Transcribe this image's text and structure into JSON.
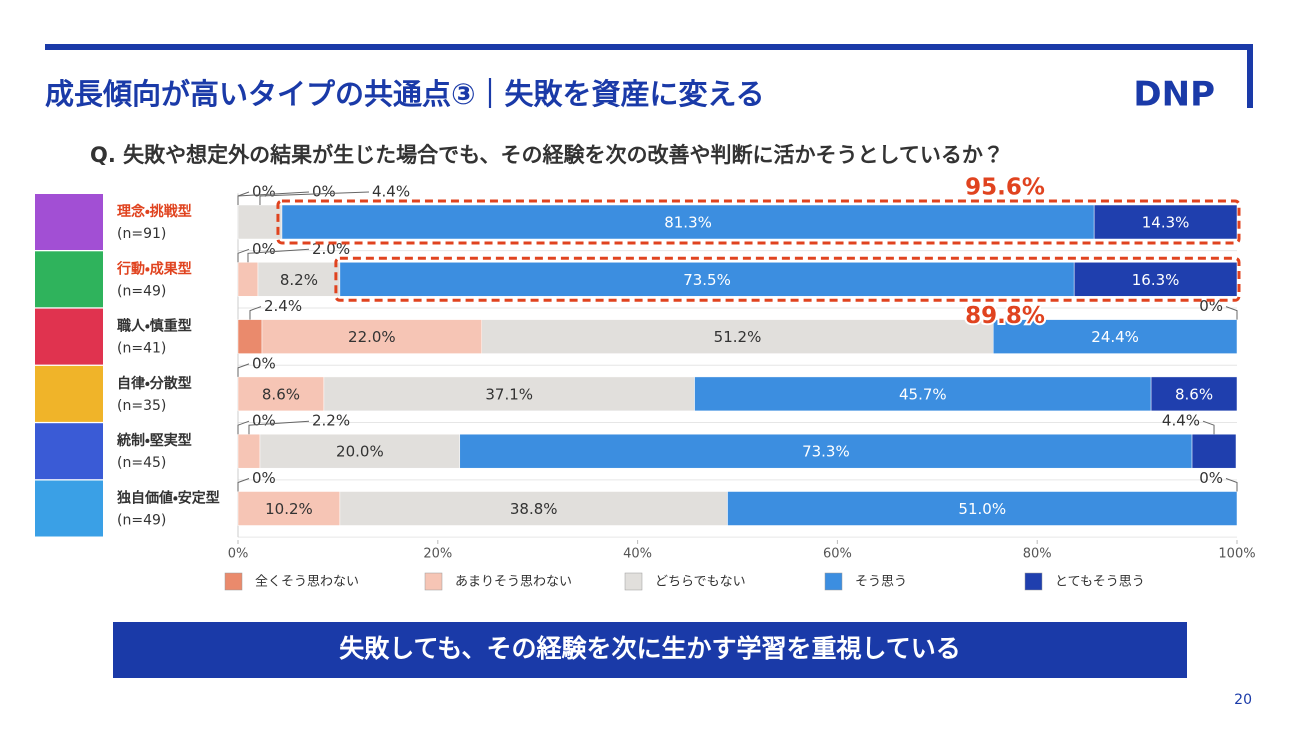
{
  "slide": {
    "title": "成長傾向が高いタイプの共通点③｜失敗を資産に変える",
    "logo": "DNP",
    "banner": "失敗しても、その経験を次に生かす学習を重視している",
    "page": "20"
  },
  "chart_data": {
    "type": "stacked_barh",
    "title": "Q. 失敗や想定外の結果が生じた場合でも、その経験を次の改善や判断に活かそうとしているか？",
    "categories": [
      "理念・挑戦型",
      "行動・成果型",
      "職人・慎重型",
      "自律・分散型",
      "統制・堅実型",
      "独自価値・安定型"
    ],
    "sample_sizes": [
      "(n=91)",
      "(n=49)",
      "(n=41)",
      "(n=35)",
      "(n=45)",
      "(n=49)"
    ],
    "highlight": [
      true,
      true,
      false,
      false,
      false,
      false
    ],
    "icon_colors": [
      "#a24fd4",
      "#2fb35c",
      "#e0334f",
      "#f0b429",
      "#3a5bd6",
      "#3aa0e6"
    ],
    "series": [
      {
        "name": "全くそう思わない",
        "color": "#ea8a6c",
        "values": [
          0,
          0,
          2.4,
          0,
          0,
          0
        ],
        "value_labels": [
          "0%",
          "0%",
          "2.4%",
          "0%",
          "0%",
          "0%"
        ]
      },
      {
        "name": "あまりそう思わない",
        "color": "#f6c5b5",
        "values": [
          0,
          2.0,
          22.0,
          8.6,
          2.2,
          10.2
        ],
        "value_labels": [
          "0%",
          "2.0%",
          "22.0%",
          "8.6%",
          "2.2%",
          "10.2%"
        ]
      },
      {
        "name": "どちらでもない",
        "color": "#e1dfdc",
        "values": [
          4.4,
          8.2,
          51.2,
          37.1,
          20.0,
          38.8
        ],
        "value_labels": [
          "4.4%",
          "8.2%",
          "51.2%",
          "37.1%",
          "20.0%",
          "38.8%"
        ]
      },
      {
        "name": "そう思う",
        "color": "#3c8ee0",
        "values": [
          81.3,
          73.5,
          24.4,
          45.7,
          73.3,
          51.0
        ],
        "value_labels": [
          "81.3%",
          "73.5%",
          "24.4%",
          "45.7%",
          "73.3%",
          "51.0%"
        ]
      },
      {
        "name": "とてもそう思う",
        "color": "#1f3fae",
        "values": [
          14.3,
          16.3,
          0,
          8.6,
          4.4,
          0
        ],
        "value_labels": [
          "14.3%",
          "16.3%",
          "0%",
          "8.6%",
          "4.4%",
          "0%"
        ]
      }
    ],
    "annotations": [
      {
        "value": 95.6,
        "label": "95.6%"
      },
      {
        "value": 89.8,
        "label": "89.8%"
      }
    ],
    "xlim": [
      0,
      100
    ],
    "xticks": [
      {
        "value": 0,
        "label": "0%"
      },
      {
        "value": 20,
        "label": "20%"
      },
      {
        "value": 40,
        "label": "40%"
      },
      {
        "value": 60,
        "label": "60%"
      },
      {
        "value": 80,
        "label": "80%"
      },
      {
        "value": 100,
        "label": "100%"
      }
    ]
  }
}
